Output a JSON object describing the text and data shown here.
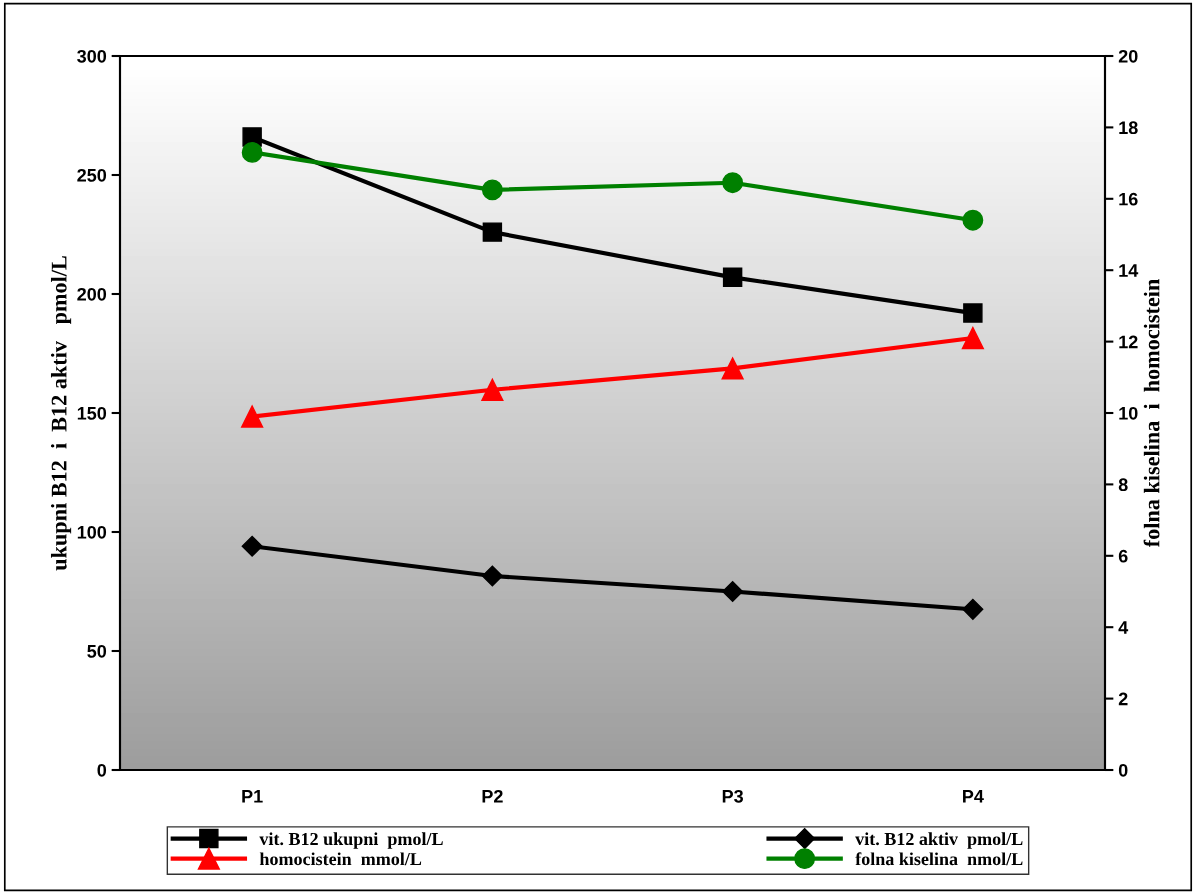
{
  "chart_data": {
    "type": "line",
    "categories": [
      "P1",
      "P2",
      "P3",
      "P4"
    ],
    "ylabel": "ukupni B12  i  B12 aktiv   pmol/L",
    "y2label": "folna kiselina  i  homocistein",
    "ylim": [
      0,
      300
    ],
    "yticks": [
      0,
      50,
      100,
      150,
      200,
      250,
      300
    ],
    "y2lim": [
      0,
      20
    ],
    "y2ticks": [
      0,
      2,
      4,
      6,
      8,
      10,
      12,
      14,
      16,
      18,
      20
    ],
    "grid": false,
    "legend": "bottom",
    "line_style": "solid",
    "series": [
      {
        "name": "vit. B12 ukupni  pmol/L",
        "color": "#000000",
        "marker": "square",
        "values": [
          266,
          226,
          207,
          192
        ]
      },
      {
        "name": "vit. B12 aktiv  pmol/L",
        "color": "#000000",
        "marker": "diamond",
        "values": [
          94,
          81.5,
          75,
          67.5
        ]
      },
      {
        "name": "homocistein  mmol/L",
        "color": "#ff0000",
        "marker": "triangle",
        "axis": "y2",
        "values": [
          9.9,
          10.65,
          11.25,
          12.1
        ]
      },
      {
        "name": "folna kiselina  nmol/L",
        "color": "#008000",
        "marker": "circle",
        "axis": "y2",
        "values": [
          17.3,
          16.25,
          16.45,
          15.4
        ]
      }
    ]
  }
}
